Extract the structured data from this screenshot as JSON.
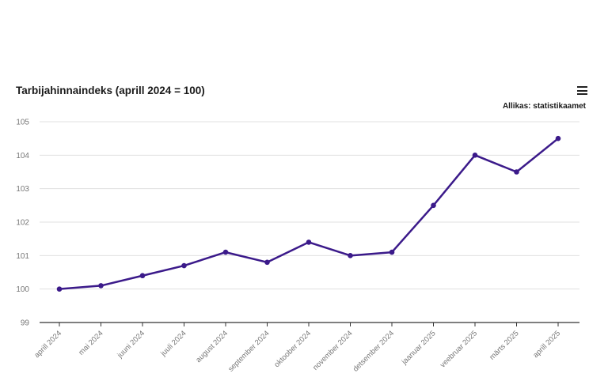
{
  "header": {
    "title": "Tarbijahinnaindeks (aprill 2024 = 100)",
    "source": "Allikas: statistikaamet",
    "menu_icon": "hamburger-menu-icon"
  },
  "chart_data": {
    "type": "line",
    "title": "Tarbijahinnaindeks (aprill 2024 = 100)",
    "categories": [
      "aprill 2024",
      "mai 2024",
      "juuni 2024",
      "juuli 2024",
      "august 2024",
      "september 2024",
      "oktoober 2024",
      "november 2024",
      "detsember 2024",
      "jaanuar 2025",
      "veebruar 2025",
      "märts 2025",
      "aprill 2025"
    ],
    "series": [
      {
        "values": [
          100.0,
          100.1,
          100.4,
          100.7,
          101.1,
          100.8,
          101.4,
          101.0,
          101.1,
          102.5,
          104.0,
          103.5,
          104.5
        ],
        "color": "#3b1a8a"
      }
    ],
    "ylim": [
      99,
      105
    ],
    "yticks": [
      99,
      100,
      101,
      102,
      103,
      104,
      105
    ],
    "grid": true,
    "legend": "none"
  }
}
